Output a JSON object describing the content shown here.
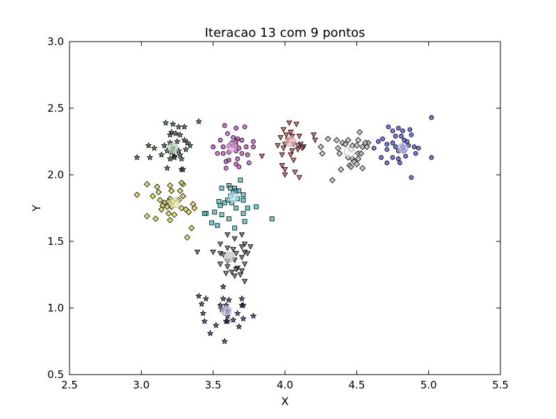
{
  "chart_data": {
    "type": "scatter",
    "title": "Iteracao 13 com 9 pontos",
    "xlabel": "X",
    "ylabel": "Y",
    "xlim": [
      2.5,
      5.5
    ],
    "ylim": [
      0.5,
      3.0
    ],
    "xticks": [
      2.5,
      3.0,
      3.5,
      4.0,
      4.5,
      5.0,
      5.5
    ],
    "yticks": [
      0.5,
      1.0,
      1.5,
      2.0,
      2.5,
      3.0
    ],
    "xtick_labels": [
      "2.5",
      "3.0",
      "3.5",
      "4.0",
      "4.5",
      "5.0",
      "5.5"
    ],
    "ytick_labels": [
      "0.5",
      "1.0",
      "1.5",
      "2.0",
      "2.5",
      "3.0"
    ],
    "grid": false,
    "legend": "none",
    "series": [
      {
        "marker": "star",
        "color": "#2f5a3a",
        "centroid": [
          3.22,
          2.2
        ],
        "centroid_color": "#b8d4b8",
        "points": [
          [
            3.17,
            2.39
          ],
          [
            3.22,
            2.38
          ],
          [
            3.26,
            2.36
          ],
          [
            3.3,
            2.36
          ],
          [
            3.4,
            2.4
          ],
          [
            3.21,
            2.32
          ],
          [
            3.24,
            2.31
          ],
          [
            3.27,
            2.3
          ],
          [
            3.2,
            2.3
          ],
          [
            3.09,
            2.2
          ],
          [
            3.16,
            2.22
          ],
          [
            3.2,
            2.24
          ],
          [
            3.25,
            2.25
          ],
          [
            3.3,
            2.26
          ],
          [
            3.32,
            2.24
          ],
          [
            3.34,
            2.22
          ],
          [
            3.18,
            2.18
          ],
          [
            3.22,
            2.2
          ],
          [
            3.26,
            2.18
          ],
          [
            3.27,
            2.15
          ],
          [
            3.23,
            2.14
          ],
          [
            3.14,
            2.15
          ],
          [
            3.31,
            2.19
          ],
          [
            3.21,
            2.17
          ],
          [
            2.97,
            2.13
          ],
          [
            3.06,
            2.13
          ],
          [
            3.2,
            2.12
          ],
          [
            3.28,
            2.12
          ],
          [
            3.18,
            2.05
          ],
          [
            3.28,
            2.04
          ],
          [
            3.29,
            2.04
          ],
          [
            3.05,
            2.22
          ],
          [
            3.23,
            2.13
          ]
        ]
      },
      {
        "marker": "circle",
        "color": "#bf40bf",
        "centroid": [
          3.63,
          2.21
        ],
        "centroid_color": "#e0a0e0",
        "points": [
          [
            3.58,
            2.37
          ],
          [
            3.66,
            2.35
          ],
          [
            3.72,
            2.36
          ],
          [
            3.6,
            2.31
          ],
          [
            3.55,
            2.26
          ],
          [
            3.64,
            2.28
          ],
          [
            3.67,
            2.27
          ],
          [
            3.7,
            2.26
          ],
          [
            3.5,
            2.21
          ],
          [
            3.57,
            2.21
          ],
          [
            3.61,
            2.22
          ],
          [
            3.64,
            2.22
          ],
          [
            3.66,
            2.22
          ],
          [
            3.68,
            2.2
          ],
          [
            3.73,
            2.21
          ],
          [
            3.78,
            2.25
          ],
          [
            3.78,
            2.21
          ],
          [
            3.53,
            2.16
          ],
          [
            3.57,
            2.16
          ],
          [
            3.61,
            2.17
          ],
          [
            3.66,
            2.18
          ],
          [
            3.7,
            2.16
          ],
          [
            3.74,
            2.15
          ],
          [
            3.61,
            2.11
          ],
          [
            3.67,
            2.12
          ],
          [
            3.75,
            2.09
          ],
          [
            3.59,
            2.05
          ],
          [
            3.66,
            2.08
          ],
          [
            3.68,
            2.06
          ],
          [
            3.59,
            2.1
          ],
          [
            3.66,
            2.25
          ],
          [
            3.63,
            2.24
          ]
        ]
      },
      {
        "marker": "triangle-down",
        "color": "#c04040",
        "centroid": [
          4.04,
          2.25
        ],
        "centroid_color": "#f0b0b0",
        "points": [
          [
            4.03,
            2.39
          ],
          [
            4.08,
            2.38
          ],
          [
            3.99,
            2.34
          ],
          [
            4.04,
            2.32
          ],
          [
            4.01,
            2.3
          ],
          [
            3.97,
            2.28
          ],
          [
            4.05,
            2.29
          ],
          [
            4.1,
            2.29
          ],
          [
            4.02,
            2.26
          ],
          [
            4.0,
            2.23
          ],
          [
            4.06,
            2.23
          ],
          [
            4.11,
            2.23
          ],
          [
            3.95,
            2.22
          ],
          [
            3.99,
            2.2
          ],
          [
            4.13,
            2.21
          ],
          [
            4.09,
            2.19
          ],
          [
            4.12,
            2.2
          ],
          [
            3.98,
            2.15
          ],
          [
            4.04,
            2.15
          ],
          [
            4.05,
            2.18
          ],
          [
            4.2,
            2.3
          ],
          [
            4.21,
            2.26
          ],
          [
            3.84,
            2.14
          ],
          [
            4.06,
            2.11
          ],
          [
            3.98,
            2.07
          ],
          [
            4.0,
            2.04
          ],
          [
            4.1,
            1.98
          ],
          [
            4.0,
            2.0
          ],
          [
            4.07,
            2.02
          ],
          [
            4.09,
            2.22
          ]
        ]
      },
      {
        "marker": "diamond",
        "color": "#b0b0b0",
        "centroid": [
          4.45,
          2.17
        ],
        "centroid_color": "#f2f2f2",
        "points": [
          [
            4.52,
            2.32
          ],
          [
            4.3,
            2.27
          ],
          [
            4.36,
            2.26
          ],
          [
            4.44,
            2.26
          ],
          [
            4.51,
            2.26
          ],
          [
            4.58,
            2.24
          ],
          [
            4.4,
            2.24
          ],
          [
            4.42,
            2.23
          ],
          [
            4.47,
            2.22
          ],
          [
            4.5,
            2.22
          ],
          [
            4.54,
            2.21
          ],
          [
            4.57,
            2.21
          ],
          [
            4.37,
            2.2
          ],
          [
            4.25,
            2.21
          ],
          [
            4.46,
            2.19
          ],
          [
            4.51,
            2.16
          ],
          [
            4.53,
            2.16
          ],
          [
            4.26,
            2.16
          ],
          [
            4.44,
            2.13
          ],
          [
            4.47,
            2.12
          ],
          [
            4.51,
            2.12
          ],
          [
            4.48,
            2.1
          ],
          [
            4.5,
            2.08
          ],
          [
            4.45,
            2.07
          ],
          [
            4.46,
            2.06
          ],
          [
            4.54,
            2.05
          ],
          [
            4.39,
            2.04
          ],
          [
            4.33,
            1.96
          ],
          [
            4.38,
            2.16
          ],
          [
            4.56,
            2.24
          ]
        ]
      },
      {
        "marker": "circle",
        "color": "#4040cc",
        "centroid": [
          4.82,
          2.2
        ],
        "centroid_color": "#b8b8f0",
        "points": [
          [
            4.72,
            2.36
          ],
          [
            4.79,
            2.35
          ],
          [
            5.02,
            2.43
          ],
          [
            4.75,
            2.33
          ],
          [
            4.82,
            2.33
          ],
          [
            4.87,
            2.34
          ],
          [
            4.77,
            2.29
          ],
          [
            4.81,
            2.29
          ],
          [
            4.88,
            2.3
          ],
          [
            4.75,
            2.24
          ],
          [
            4.83,
            2.26
          ],
          [
            4.65,
            2.25
          ],
          [
            4.71,
            2.23
          ],
          [
            4.77,
            2.21
          ],
          [
            4.82,
            2.21
          ],
          [
            4.86,
            2.22
          ],
          [
            4.9,
            2.21
          ],
          [
            4.93,
            2.2
          ],
          [
            4.71,
            2.19
          ],
          [
            4.79,
            2.18
          ],
          [
            4.83,
            2.18
          ],
          [
            4.67,
            2.13
          ],
          [
            4.75,
            2.13
          ],
          [
            4.79,
            2.12
          ],
          [
            4.84,
            2.14
          ],
          [
            4.91,
            2.16
          ],
          [
            5.02,
            2.13
          ],
          [
            4.71,
            2.09
          ],
          [
            4.8,
            2.09
          ],
          [
            4.88,
            1.98
          ],
          [
            4.62,
            2.2
          ],
          [
            4.68,
            2.27
          ],
          [
            4.85,
            2.25
          ]
        ]
      },
      {
        "marker": "diamond",
        "color": "#d4cf3a",
        "centroid": [
          3.23,
          1.79
        ],
        "centroid_color": "#eeeea8",
        "points": [
          [
            3.04,
            1.93
          ],
          [
            3.11,
            1.91
          ],
          [
            3.2,
            1.92
          ],
          [
            3.29,
            1.93
          ],
          [
            3.28,
            1.94
          ],
          [
            3.12,
            1.87
          ],
          [
            3.21,
            1.88
          ],
          [
            3.27,
            1.88
          ],
          [
            2.97,
            1.85
          ],
          [
            3.08,
            1.84
          ],
          [
            3.13,
            1.81
          ],
          [
            3.2,
            1.82
          ],
          [
            3.26,
            1.81
          ],
          [
            3.29,
            1.84
          ],
          [
            3.16,
            1.79
          ],
          [
            3.19,
            1.8
          ],
          [
            3.22,
            1.8
          ],
          [
            3.36,
            1.78
          ],
          [
            3.15,
            1.77
          ],
          [
            3.21,
            1.76
          ],
          [
            3.28,
            1.75
          ],
          [
            3.31,
            1.74
          ],
          [
            3.37,
            1.75
          ],
          [
            3.14,
            1.74
          ],
          [
            3.19,
            1.71
          ],
          [
            3.23,
            1.7
          ],
          [
            3.33,
            1.72
          ],
          [
            3.04,
            1.69
          ],
          [
            3.1,
            1.67
          ],
          [
            3.2,
            1.66
          ],
          [
            3.35,
            1.6
          ],
          [
            3.32,
            1.53
          ],
          [
            3.18,
            1.76
          ]
        ]
      },
      {
        "marker": "square",
        "color": "#40c0c0",
        "centroid": [
          3.64,
          1.83
        ],
        "centroid_color": "#b0e8e8",
        "points": [
          [
            3.69,
            1.96
          ],
          [
            3.61,
            1.92
          ],
          [
            3.56,
            1.9
          ],
          [
            3.62,
            1.9
          ],
          [
            3.65,
            1.9
          ],
          [
            3.64,
            1.87
          ],
          [
            3.62,
            1.84
          ],
          [
            3.6,
            1.81
          ],
          [
            3.67,
            1.82
          ],
          [
            3.71,
            1.81
          ],
          [
            3.54,
            1.8
          ],
          [
            3.58,
            1.79
          ],
          [
            3.63,
            1.79
          ],
          [
            3.71,
            1.85
          ],
          [
            3.66,
            1.88
          ],
          [
            3.55,
            1.77
          ],
          [
            3.66,
            1.75
          ],
          [
            3.74,
            1.75
          ],
          [
            3.8,
            1.76
          ],
          [
            3.45,
            1.71
          ],
          [
            3.51,
            1.72
          ],
          [
            3.56,
            1.7
          ],
          [
            3.71,
            1.71
          ],
          [
            3.61,
            1.67
          ],
          [
            3.72,
            1.65
          ],
          [
            3.49,
            1.64
          ],
          [
            3.53,
            1.62
          ],
          [
            3.91,
            1.67
          ],
          [
            3.65,
            1.6
          ],
          [
            3.44,
            1.71
          ],
          [
            3.68,
            1.88
          ]
        ]
      },
      {
        "marker": "triangle-down",
        "color": "#505050",
        "centroid": [
          3.61,
          1.38
        ],
        "centroid_color": "#c0c0c0",
        "points": [
          [
            3.6,
            1.55
          ],
          [
            3.7,
            1.55
          ],
          [
            3.65,
            1.52
          ],
          [
            3.55,
            1.48
          ],
          [
            3.72,
            1.48
          ],
          [
            3.7,
            1.46
          ],
          [
            3.76,
            1.46
          ],
          [
            3.6,
            1.45
          ],
          [
            3.64,
            1.44
          ],
          [
            3.5,
            1.42
          ],
          [
            3.39,
            1.42
          ],
          [
            3.55,
            1.41
          ],
          [
            3.66,
            1.41
          ],
          [
            3.72,
            1.42
          ],
          [
            3.74,
            1.41
          ],
          [
            3.57,
            1.4
          ],
          [
            3.7,
            1.38
          ],
          [
            3.65,
            1.36
          ],
          [
            3.6,
            1.35
          ],
          [
            3.72,
            1.33
          ],
          [
            3.55,
            1.33
          ],
          [
            3.6,
            1.31
          ],
          [
            3.67,
            1.3
          ],
          [
            3.63,
            1.27
          ],
          [
            3.7,
            1.28
          ],
          [
            3.66,
            1.29
          ],
          [
            3.59,
            1.26
          ],
          [
            3.65,
            1.24
          ],
          [
            3.72,
            1.2
          ],
          [
            3.69,
            1.25
          ]
        ]
      },
      {
        "marker": "star",
        "color": "#2a2a6a",
        "centroid": [
          3.59,
          0.98
        ],
        "centroid_color": "#b8b8e0",
        "points": [
          [
            3.4,
            1.09
          ],
          [
            3.57,
            1.16
          ],
          [
            3.45,
            1.07
          ],
          [
            3.57,
            1.07
          ],
          [
            3.61,
            1.06
          ],
          [
            3.7,
            1.07
          ],
          [
            3.42,
            1.03
          ],
          [
            3.55,
            1.02
          ],
          [
            3.59,
            1.02
          ],
          [
            3.7,
            1.02
          ],
          [
            3.71,
            1.02
          ],
          [
            3.56,
            0.99
          ],
          [
            3.6,
            0.98
          ],
          [
            3.67,
            0.96
          ],
          [
            3.43,
            0.96
          ],
          [
            3.6,
            0.94
          ],
          [
            3.71,
            0.92
          ],
          [
            3.78,
            0.94
          ],
          [
            3.44,
            0.9
          ],
          [
            3.59,
            0.9
          ],
          [
            3.64,
            0.91
          ],
          [
            3.52,
            0.87
          ],
          [
            3.68,
            0.86
          ],
          [
            3.48,
            0.81
          ],
          [
            3.58,
            0.75
          ],
          [
            3.6,
            0.9
          ]
        ]
      }
    ]
  }
}
